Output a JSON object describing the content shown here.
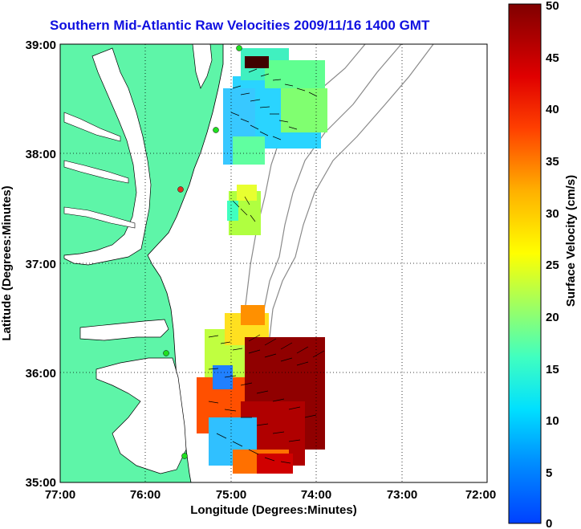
{
  "title": "Southern Mid-Atlantic Raw Velocities 2009/11/16 1400 GMT",
  "xlabel": "Longitude (Degrees:Minutes)",
  "ylabel": "Latitude (Degrees:Minutes)",
  "x_ticks": [
    "77:00",
    "76:00",
    "75:00",
    "74:00",
    "73:00",
    "72:00"
  ],
  "y_ticks": [
    "39:00",
    "38:00",
    "37:00",
    "36:00",
    "35:00"
  ],
  "colorbar": {
    "label": "Surface Velocity (cm/s)",
    "ticks": [
      "0",
      "5",
      "10",
      "15",
      "20",
      "25",
      "30",
      "35",
      "40",
      "45",
      "50"
    ]
  },
  "colors": {
    "title": "#1010e0",
    "land": "#5ef5a8",
    "ocean": "#ffffff"
  },
  "grid": "dotted"
}
